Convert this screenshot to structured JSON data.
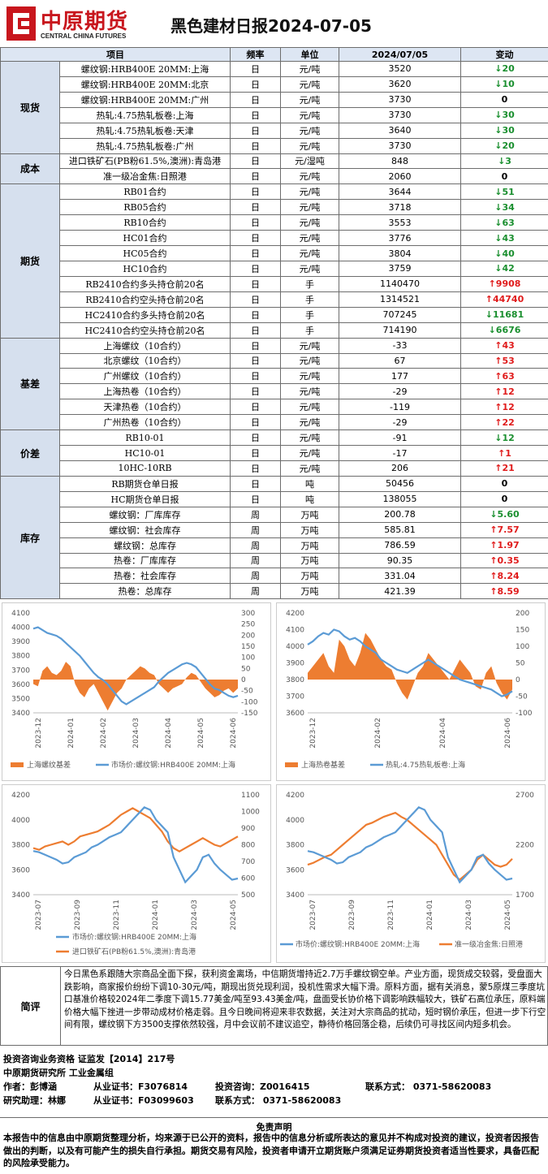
{
  "header": {
    "logo_cn": "中原期货",
    "logo_en": "CENTRAL CHINA FUTURES",
    "title": "黑色建材日报2024-07-05"
  },
  "table": {
    "headers": [
      "项目",
      "频率",
      "单位",
      "2024/07/05",
      "变动"
    ],
    "groups": [
      {
        "name": "现货",
        "rows": [
          {
            "item": "螺纹钢:HRB400E 20MM:上海",
            "freq": "日",
            "unit": "元/吨",
            "value": "3520",
            "change": "20",
            "dir": "down"
          },
          {
            "item": "螺纹钢:HRB400E 20MM:北京",
            "freq": "日",
            "unit": "元/吨",
            "value": "3620",
            "change": "10",
            "dir": "down"
          },
          {
            "item": "螺纹钢:HRB400E 20MM:广州",
            "freq": "日",
            "unit": "元/吨",
            "value": "3730",
            "change": "0",
            "dir": "none"
          },
          {
            "item": "热轧:4.75热轧板卷:上海",
            "freq": "日",
            "unit": "元/吨",
            "value": "3730",
            "change": "30",
            "dir": "down"
          },
          {
            "item": "热轧:4.75热轧板卷:天津",
            "freq": "日",
            "unit": "元/吨",
            "value": "3640",
            "change": "30",
            "dir": "down"
          },
          {
            "item": "热轧:4.75热轧板卷:广州",
            "freq": "日",
            "unit": "元/吨",
            "value": "3730",
            "change": "20",
            "dir": "down"
          }
        ]
      },
      {
        "name": "成本",
        "rows": [
          {
            "item": "进口铁矿石(PB粉61.5%,澳洲):青岛港",
            "freq": "日",
            "unit": "元/湿吨",
            "value": "848",
            "change": "3",
            "dir": "down"
          },
          {
            "item": "准一级冶金焦:日照港",
            "freq": "日",
            "unit": "元/吨",
            "value": "2060",
            "change": "0",
            "dir": "none"
          }
        ]
      },
      {
        "name": "期货",
        "rows": [
          {
            "item": "RB01合约",
            "freq": "日",
            "unit": "元/吨",
            "value": "3644",
            "change": "51",
            "dir": "down"
          },
          {
            "item": "RB05合约",
            "freq": "日",
            "unit": "元/吨",
            "value": "3718",
            "change": "34",
            "dir": "down"
          },
          {
            "item": "RB10合约",
            "freq": "日",
            "unit": "元/吨",
            "value": "3553",
            "change": "63",
            "dir": "down"
          },
          {
            "item": "HC01合约",
            "freq": "日",
            "unit": "元/吨",
            "value": "3776",
            "change": "43",
            "dir": "down"
          },
          {
            "item": "HC05合约",
            "freq": "日",
            "unit": "元/吨",
            "value": "3804",
            "change": "40",
            "dir": "down"
          },
          {
            "item": "HC10合约",
            "freq": "日",
            "unit": "元/吨",
            "value": "3759",
            "change": "42",
            "dir": "down"
          },
          {
            "item": "RB2410合约多头持仓前20名",
            "freq": "日",
            "unit": "手",
            "value": "1140470",
            "change": "9908",
            "dir": "up"
          },
          {
            "item": "RB2410合约空头持仓前20名",
            "freq": "日",
            "unit": "手",
            "value": "1314521",
            "change": "44740",
            "dir": "up"
          },
          {
            "item": "HC2410合约多头持仓前20名",
            "freq": "日",
            "unit": "手",
            "value": "707245",
            "change": "11681",
            "dir": "down"
          },
          {
            "item": "HC2410合约空头持仓前20名",
            "freq": "日",
            "unit": "手",
            "value": "714190",
            "change": "6676",
            "dir": "down"
          }
        ]
      },
      {
        "name": "基差",
        "rows": [
          {
            "item": "上海螺纹（10合约）",
            "freq": "日",
            "unit": "元/吨",
            "value": "-33",
            "change": "43",
            "dir": "up"
          },
          {
            "item": "北京螺纹（10合约）",
            "freq": "日",
            "unit": "元/吨",
            "value": "67",
            "change": "53",
            "dir": "up"
          },
          {
            "item": "广州螺纹（10合约）",
            "freq": "日",
            "unit": "元/吨",
            "value": "177",
            "change": "63",
            "dir": "up"
          },
          {
            "item": "上海热卷（10合约）",
            "freq": "日",
            "unit": "元/吨",
            "value": "-29",
            "change": "12",
            "dir": "up"
          },
          {
            "item": "天津热卷（10合约）",
            "freq": "日",
            "unit": "元/吨",
            "value": "-119",
            "change": "12",
            "dir": "up"
          },
          {
            "item": "广州热卷（10合约）",
            "freq": "日",
            "unit": "元/吨",
            "value": "-29",
            "change": "22",
            "dir": "up"
          }
        ]
      },
      {
        "name": "价差",
        "rows": [
          {
            "item": "RB10-01",
            "freq": "日",
            "unit": "元/吨",
            "value": "-91",
            "change": "12",
            "dir": "down"
          },
          {
            "item": "HC10-01",
            "freq": "日",
            "unit": "元/吨",
            "value": "-17",
            "change": "1",
            "dir": "up"
          },
          {
            "item": "10HC-10RB",
            "freq": "日",
            "unit": "元/吨",
            "value": "206",
            "change": "21",
            "dir": "up"
          }
        ]
      },
      {
        "name": "库存",
        "rows": [
          {
            "item": "RB期货仓单日报",
            "freq": "日",
            "unit": "吨",
            "value": "50456",
            "change": "0",
            "dir": "none"
          },
          {
            "item": "HC期货仓单日报",
            "freq": "日",
            "unit": "吨",
            "value": "138055",
            "change": "0",
            "dir": "none"
          },
          {
            "item": "螺纹钢：厂库库存",
            "freq": "周",
            "unit": "万吨",
            "value": "200.78",
            "change": "5.60",
            "dir": "down"
          },
          {
            "item": "螺纹钢：社会库存",
            "freq": "周",
            "unit": "万吨",
            "value": "585.81",
            "change": "7.57",
            "dir": "up"
          },
          {
            "item": "螺纹钢：总库存",
            "freq": "周",
            "unit": "万吨",
            "value": "786.59",
            "change": "1.97",
            "dir": "up"
          },
          {
            "item": "热卷：厂库库存",
            "freq": "周",
            "unit": "万吨",
            "value": "90.35",
            "change": "0.35",
            "dir": "up"
          },
          {
            "item": "热卷：社会库存",
            "freq": "周",
            "unit": "万吨",
            "value": "331.04",
            "change": "8.24",
            "dir": "up"
          },
          {
            "item": "热卷：总库存",
            "freq": "周",
            "unit": "万吨",
            "value": "421.39",
            "change": "8.59",
            "dir": "up"
          }
        ]
      }
    ]
  },
  "charts": [
    {
      "type": "line",
      "left_ticks": [
        "4100",
        "4000",
        "3900",
        "3800",
        "3700",
        "3600",
        "3500",
        "3400"
      ],
      "right_ticks": [
        "300",
        "250",
        "200",
        "150",
        "100",
        "50",
        "0",
        "-50",
        "-100",
        "-150"
      ],
      "x_ticks": [
        "2023-12",
        "2024-01",
        "2024-02",
        "2024-03",
        "2024-04",
        "2024-05",
        "2024-06"
      ],
      "series_bar": "上海螺纹基差",
      "series_line": "市场价:螺纹钢:HRB400E 20MM:上海",
      "ylim": [
        3400,
        4100
      ],
      "y2lim": [
        -150,
        300
      ],
      "line_values": [
        3990,
        4000,
        3980,
        3960,
        3950,
        3940,
        3920,
        3890,
        3860,
        3830,
        3800,
        3760,
        3720,
        3680,
        3650,
        3630,
        3600,
        3560,
        3520,
        3480,
        3460,
        3480,
        3500,
        3520,
        3540,
        3560,
        3580,
        3620,
        3650,
        3680,
        3700,
        3720,
        3740,
        3750,
        3740,
        3720,
        3680,
        3640,
        3600,
        3570,
        3560,
        3540,
        3520,
        3510,
        3520
      ],
      "bar_values": [
        -20,
        -30,
        40,
        60,
        30,
        20,
        40,
        80,
        60,
        -20,
        -60,
        -80,
        -40,
        -20,
        -60,
        -100,
        -140,
        -100,
        -60,
        -40,
        0,
        20,
        40,
        60,
        50,
        30,
        20,
        -20,
        -40,
        -60,
        -40,
        -30,
        -20,
        10,
        30,
        20,
        -10,
        -40,
        -60,
        -80,
        -70,
        -50,
        -40,
        -60,
        -40
      ]
    },
    {
      "type": "line",
      "left_ticks": [
        "4200",
        "4100",
        "4000",
        "3900",
        "3800",
        "3700",
        "3600"
      ],
      "right_ticks": [
        "200",
        "150",
        "100",
        "50",
        "0",
        "-50",
        "-100"
      ],
      "x_ticks": [
        "2023-12",
        "2024-02",
        "2024-04",
        "2024-06"
      ],
      "series_bar": "上海热卷基差",
      "series_line": "热轧:4.75热轧板卷:上海",
      "ylim": [
        3600,
        4200
      ],
      "y2lim": [
        -100,
        200
      ],
      "line_values": [
        4010,
        4030,
        4060,
        4080,
        4070,
        4100,
        4090,
        4060,
        4040,
        4050,
        4030,
        4000,
        3980,
        3960,
        3920,
        3900,
        3880,
        3860,
        3850,
        3840,
        3860,
        3880,
        3900,
        3920,
        3900,
        3880,
        3860,
        3840,
        3820,
        3800,
        3790,
        3780,
        3770,
        3760,
        3750,
        3740,
        3720,
        3700,
        3710,
        3730
      ],
      "bar_values": [
        20,
        40,
        60,
        80,
        40,
        20,
        120,
        100,
        60,
        40,
        80,
        140,
        120,
        90,
        60,
        40,
        30,
        -10,
        -40,
        -60,
        -20,
        20,
        40,
        80,
        60,
        40,
        20,
        0,
        30,
        60,
        40,
        20,
        -20,
        -30,
        20,
        40,
        -10,
        -40,
        -60,
        -30
      ]
    },
    {
      "type": "line",
      "left_ticks": [
        "4200",
        "4000",
        "3800",
        "3600",
        "3400"
      ],
      "right_ticks": [
        "1100",
        "1000",
        "900",
        "800",
        "700",
        "600",
        "500"
      ],
      "x_ticks": [
        "2023-07",
        "2023-09",
        "2023-11",
        "2024-01",
        "2024-03",
        "2024-05"
      ],
      "series_line": "市场价:螺纹钢:HRB400E 20MM:上海",
      "series_line2": "进口铁矿石(PB粉61.5%,澳洲):青岛港",
      "ylim": [
        3400,
        4200
      ],
      "y2lim": [
        500,
        1100
      ],
      "line_values": [
        3750,
        3740,
        3720,
        3700,
        3680,
        3650,
        3660,
        3700,
        3720,
        3740,
        3780,
        3800,
        3830,
        3860,
        3880,
        3900,
        3950,
        4000,
        4050,
        4100,
        4080,
        4000,
        3950,
        3900,
        3700,
        3600,
        3500,
        3550,
        3600,
        3700,
        3720,
        3650,
        3600,
        3560,
        3520,
        3530
      ],
      "line2_values": [
        780,
        770,
        790,
        800,
        810,
        820,
        800,
        820,
        850,
        860,
        870,
        880,
        900,
        920,
        950,
        980,
        1000,
        1020,
        1000,
        980,
        960,
        920,
        880,
        820,
        780,
        760,
        780,
        800,
        820,
        840,
        820,
        800,
        790,
        810,
        830,
        850
      ]
    },
    {
      "type": "line",
      "left_ticks": [
        "4200",
        "4000",
        "3800",
        "3600",
        "3400"
      ],
      "right_ticks": [
        "2700",
        "2200",
        "1700"
      ],
      "x_ticks": [
        "2023-07",
        "2023-09",
        "2023-11",
        "2024-01",
        "2024-03",
        "2024-05"
      ],
      "series_line": "市场价:螺纹钢:HRB400E 20MM:上海",
      "series_line2": "准一级冶金焦:日照港",
      "ylim": [
        3400,
        4200
      ],
      "y2lim": [
        1700,
        2700
      ],
      "line_values": [
        3750,
        3740,
        3720,
        3700,
        3680,
        3650,
        3660,
        3700,
        3720,
        3740,
        3780,
        3800,
        3830,
        3860,
        3880,
        3900,
        3950,
        4000,
        4050,
        4100,
        4080,
        4000,
        3950,
        3900,
        3700,
        3600,
        3500,
        3550,
        3600,
        3700,
        3720,
        3650,
        3600,
        3560,
        3520,
        3530
      ],
      "line2_values": [
        2000,
        2020,
        2050,
        2080,
        2100,
        2150,
        2200,
        2250,
        2300,
        2350,
        2400,
        2420,
        2450,
        2480,
        2500,
        2520,
        2480,
        2450,
        2400,
        2350,
        2300,
        2250,
        2200,
        2100,
        2000,
        1900,
        1850,
        1900,
        1950,
        2050,
        2100,
        2050,
        2000,
        1980,
        2000,
        2060
      ]
    }
  ],
  "comment": {
    "label": "简评",
    "text": "今日黑色系跟随大宗商品全面下探，获利资金离场，中信期货增持近2.7万手螺纹钢空单。产业方面，现货成交较弱，受盘面大跌影响，商家报价纷纷下调10-30元/吨，期现出货兑现利润，投机性需求大幅下滑。原料方面，据有关消息，蒙5原煤三季度坑口基准价格较2024年二季度下调15.77美金/吨至93.43美金/吨，盘面受长协价格下调影响跌幅较大，铁矿石高位承压，原料端价格大幅下挫进一步带动成材价格走弱。且今日晚间将迎来非农数据，关注对大宗商品的扰动，短时钢价承压，但进一步下行空间有限，螺纹钢下方3500支撑依然较强，月中会议前不建议追空，静待价格回落企稳，后续仍可寻找区间内短多机会。"
  },
  "info": {
    "line1": "投资咨询业务资格   证监发【2014】217号",
    "line2": "中原期货研究所     工业金属组",
    "line3_a": "作者：彭博涵",
    "line3_b": "从业证书：F3076814",
    "line3_c": "投资咨询：Z0016415",
    "line3_d": "联系方式： 0371-58620083",
    "line4_a": "研究助理：林娜",
    "line4_b": "从业证书：F03099603",
    "line4_c": "联系方式： 0371-58620083"
  },
  "disclaimer": {
    "title": "免责声明",
    "text": "本报告中的信息由中原期货整理分析，均来源于已公开的资料，报告中的信息分析或所表达的意见并不构成对投资的建议，投资者因报告做出的判断，以及有可能产生的损失自行承担。期货交易有风险，投资者申请开立期货账户须满足证券期货投资者适当性要求，具备匹配的风险承受能力。"
  },
  "colors": {
    "orange": "#ed7d31",
    "blue": "#5b9bd5",
    "up": "#e01b1b",
    "down": "#1a8f2f",
    "logo_red": "#c8161d"
  }
}
